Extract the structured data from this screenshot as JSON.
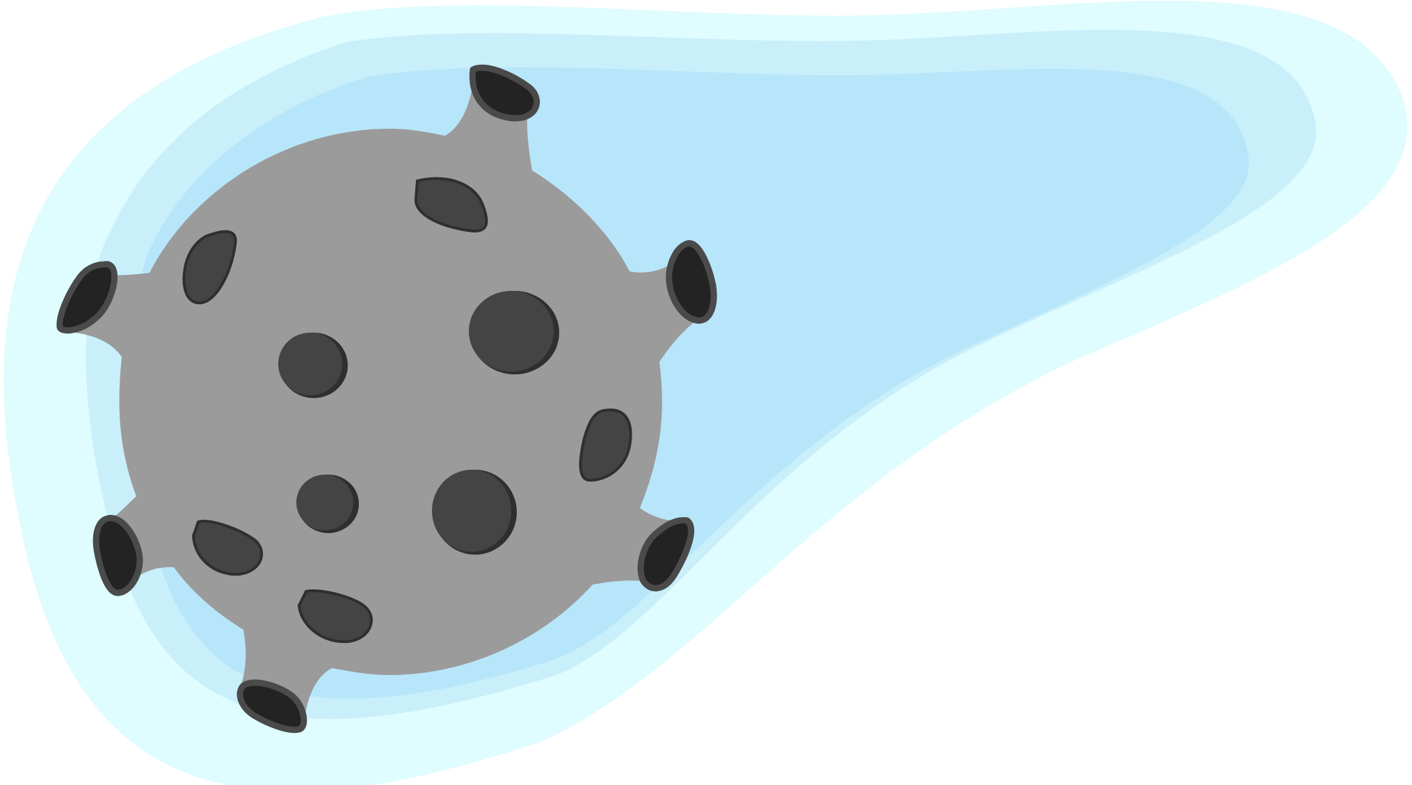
{
  "illustration": {
    "subject": "asteroid-with-trail",
    "icons": [
      "virus-asteroid-icon",
      "glow-trail-icon"
    ]
  },
  "colors": {
    "background": "#ffffff",
    "trail_outer": "#dffcfe",
    "trail_middle": "#c9effb",
    "trail_inner": "#b7e6fa",
    "body": "#9b9b9b",
    "crater": "#444444",
    "crater_edge": "#2f2f2f",
    "spike_tip": "#232323",
    "spike_tip_edge": "#4a4a4a"
  }
}
